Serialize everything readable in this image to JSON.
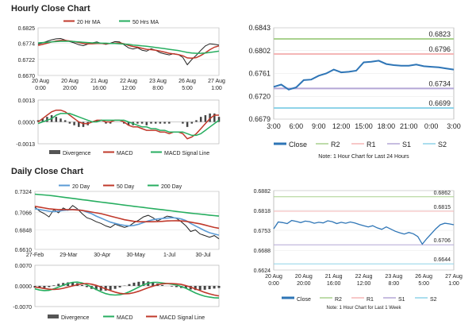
{
  "hourly": {
    "title": "Hourly Close Chart",
    "chart_data": [
      {
        "type": "line",
        "id": "hourly-price",
        "legend": [
          "20 Hr MA",
          "50 Hrs MA"
        ],
        "colors": {
          "close": "#222222",
          "ma20": "#c0392b",
          "ma50": "#27ae60"
        },
        "yticks": [
          "0.6825",
          "0.6774",
          "0.6722",
          "0.6670"
        ],
        "ylim": [
          0.667,
          0.6825
        ],
        "xticks": [
          "20 Aug\n0:00",
          "20 Aug\n20:00",
          "21 Aug\n16:00",
          "22 Aug\n12:00",
          "23 Aug\n8:00",
          "26 Aug\n5:00",
          "27 Aug\n1:00"
        ],
        "series": [
          {
            "name": "Close",
            "values": [
              0.6772,
              0.6776,
              0.6781,
              0.6786,
              0.6789,
              0.679,
              0.6785,
              0.678,
              0.6776,
              0.677,
              0.6767,
              0.6772,
              0.6776,
              0.6779,
              0.6774,
              0.6771,
              0.6775,
              0.678,
              0.6779,
              0.677,
              0.676,
              0.6756,
              0.676,
              0.6752,
              0.6749,
              0.6757,
              0.6752,
              0.6744,
              0.674,
              0.6737,
              0.6741,
              0.6738,
              0.6729,
              0.6705,
              0.6722,
              0.6736,
              0.6752,
              0.6766,
              0.6773,
              0.6771,
              0.6769
            ]
          },
          {
            "name": "20 Hr MA",
            "values": [
              0.6768,
              0.6771,
              0.6775,
              0.6779,
              0.6782,
              0.6784,
              0.6784,
              0.6782,
              0.678,
              0.6777,
              0.6774,
              0.6773,
              0.6773,
              0.6774,
              0.6774,
              0.6773,
              0.6774,
              0.6775,
              0.6776,
              0.6773,
              0.6768,
              0.6764,
              0.6762,
              0.6758,
              0.6755,
              0.6754,
              0.6752,
              0.6749,
              0.6746,
              0.6742,
              0.674,
              0.6738,
              0.6734,
              0.6727,
              0.6726,
              0.6728,
              0.6735,
              0.6744,
              0.6754,
              0.6762,
              0.6766
            ]
          },
          {
            "name": "50 Hrs MA",
            "values": [
              0.6776,
              0.6777,
              0.6778,
              0.6779,
              0.678,
              0.6781,
              0.6781,
              0.6781,
              0.678,
              0.6779,
              0.6778,
              0.6777,
              0.6776,
              0.6776,
              0.6775,
              0.6775,
              0.6774,
              0.6774,
              0.6773,
              0.6772,
              0.6771,
              0.6769,
              0.6768,
              0.6766,
              0.6765,
              0.6763,
              0.6761,
              0.6759,
              0.6757,
              0.6755,
              0.6753,
              0.6751,
              0.6748,
              0.6745,
              0.6743,
              0.6742,
              0.6742,
              0.6743,
              0.6745,
              0.6747,
              0.6749
            ]
          }
        ]
      },
      {
        "type": "line",
        "id": "hourly-macd",
        "legend": [
          "Divergence",
          "MACD",
          "MACD Signal Line"
        ],
        "yticks": [
          "0.0013",
          "0.0000",
          "-0.0013"
        ],
        "ylim": [
          -0.0013,
          0.0013
        ],
        "series": [
          {
            "name": "MACD",
            "values": [
              0.0,
              0.0002,
              0.0004,
              0.0006,
              0.0007,
              0.0007,
              0.0006,
              0.0004,
              0.0002,
              0.0,
              -0.0001,
              -0.0001,
              0.0,
              0.0001,
              0.0001,
              0.0,
              0.0,
              0.0001,
              0.0001,
              0.0,
              -0.0002,
              -0.0003,
              -0.0003,
              -0.0004,
              -0.0005,
              -0.0005,
              -0.0005,
              -0.0006,
              -0.0006,
              -0.0007,
              -0.0006,
              -0.0006,
              -0.0007,
              -0.001,
              -0.0009,
              -0.0007,
              -0.0004,
              -0.0001,
              0.0002,
              0.0004,
              0.0004
            ]
          },
          {
            "name": "MACD Signal Line",
            "values": [
              -0.0001,
              0.0,
              0.0001,
              0.0002,
              0.0004,
              0.0005,
              0.0005,
              0.0005,
              0.0004,
              0.0003,
              0.0002,
              0.0001,
              0.0,
              0.0,
              0.0001,
              0.0001,
              0.0001,
              0.0001,
              0.0001,
              0.0001,
              0.0,
              -0.0001,
              -0.0002,
              -0.0003,
              -0.0003,
              -0.0004,
              -0.0004,
              -0.0005,
              -0.0005,
              -0.0006,
              -0.0006,
              -0.0006,
              -0.0006,
              -0.0007,
              -0.0008,
              -0.0008,
              -0.0007,
              -0.0005,
              -0.0003,
              -0.0001,
              0.0001
            ]
          }
        ]
      },
      {
        "type": "line",
        "id": "hourly-24h",
        "title": "",
        "note": "Note: 1 Hour Chart for Last 24 Hours",
        "yticks": [
          "0.6843",
          "0.6802",
          "0.6761",
          "0.6720",
          "0.6679"
        ],
        "ylim": [
          0.6679,
          0.6843
        ],
        "xticks": [
          "3:00",
          "6:00",
          "9:00",
          "12:00",
          "15:00",
          "18:00",
          "21:00",
          "0:00",
          "3:00"
        ],
        "levels": [
          {
            "name": "R2",
            "value": 0.6823,
            "label": "0.6823",
            "color": "#a9d18e"
          },
          {
            "name": "R1",
            "value": 0.6796,
            "label": "0.6796",
            "color": "#f4b6b6"
          },
          {
            "name": "S1",
            "value": 0.6734,
            "label": "0.6734",
            "color": "#b4a7d6"
          },
          {
            "name": "S2",
            "value": 0.6699,
            "label": "0.6699",
            "color": "#8fd3e8"
          }
        ],
        "series": [
          {
            "name": "Close",
            "values": [
              0.6737,
              0.6741,
              0.6732,
              0.6736,
              0.6749,
              0.675,
              0.6757,
              0.6761,
              0.6768,
              0.6763,
              0.6764,
              0.6766,
              0.6781,
              0.6782,
              0.6784,
              0.6778,
              0.6776,
              0.6775,
              0.6775,
              0.6777,
              0.6774,
              0.6773,
              0.6772,
              0.677,
              0.6768
            ]
          }
        ],
        "legend": [
          "Close",
          "R2",
          "R1",
          "S1",
          "S2"
        ]
      }
    ]
  },
  "daily": {
    "title": "Daily Close Chart",
    "chart_data": [
      {
        "type": "line",
        "id": "daily-price",
        "legend": [
          "20 Day",
          "50 Day",
          "200 Day"
        ],
        "colors": {
          "close": "#222222",
          "ma20": "#5b9bd5",
          "ma50": "#c0392b",
          "ma200": "#27ae60"
        },
        "yticks": [
          "0.7324",
          "0.7066",
          "0.6848",
          "0.6610"
        ],
        "ylim": [
          0.661,
          0.7324
        ],
        "xticks": [
          "27-Feb",
          "29-Mar",
          "30-Apr",
          "30-May",
          "1-Jul",
          "30-Jul"
        ],
        "series": [
          {
            "name": "Close",
            "values": [
              0.713,
              0.708,
              0.705,
              0.701,
              0.71,
              0.706,
              0.712,
              0.709,
              0.715,
              0.711,
              0.705,
              0.7,
              0.698,
              0.695,
              0.693,
              0.69,
              0.688,
              0.692,
              0.69,
              0.688,
              0.69,
              0.694,
              0.697,
              0.701,
              0.703,
              0.7,
              0.696,
              0.699,
              0.702,
              0.701,
              0.699,
              0.695,
              0.69,
              0.683,
              0.685,
              0.68,
              0.678,
              0.676,
              0.678,
              0.674
            ]
          },
          {
            "name": "20 Day",
            "values": [
              0.711,
              0.71,
              0.709,
              0.708,
              0.7075,
              0.708,
              0.709,
              0.7095,
              0.71,
              0.71,
              0.709,
              0.707,
              0.705,
              0.702,
              0.6995,
              0.697,
              0.6945,
              0.693,
              0.6915,
              0.6905,
              0.69,
              0.6905,
              0.692,
              0.694,
              0.696,
              0.6975,
              0.6985,
              0.699,
              0.6995,
              0.7,
              0.6995,
              0.6985,
              0.6965,
              0.693,
              0.69,
              0.687,
              0.684,
              0.6815,
              0.68,
              0.6785
            ]
          },
          {
            "name": "50 Day",
            "values": [
              0.714,
              0.713,
              0.712,
              0.711,
              0.7105,
              0.71,
              0.71,
              0.71,
              0.71,
              0.7095,
              0.709,
              0.708,
              0.707,
              0.706,
              0.705,
              0.7035,
              0.702,
              0.7005,
              0.699,
              0.6975,
              0.6965,
              0.6955,
              0.695,
              0.695,
              0.695,
              0.695,
              0.6952,
              0.6955,
              0.696,
              0.6962,
              0.6963,
              0.696,
              0.6955,
              0.6945,
              0.6935,
              0.6925,
              0.691,
              0.6895,
              0.688,
              0.687
            ]
          },
          {
            "name": "200 Day",
            "values": [
              0.729,
              0.7285,
              0.728,
              0.7275,
              0.7268,
              0.726,
              0.7253,
              0.7245,
              0.7238,
              0.723,
              0.7222,
              0.7215,
              0.7208,
              0.72,
              0.7192,
              0.7185,
              0.7178,
              0.717,
              0.7163,
              0.7155,
              0.7148,
              0.714,
              0.7133,
              0.7126,
              0.7119,
              0.7112,
              0.7105,
              0.7098,
              0.7091,
              0.7084,
              0.7077,
              0.707,
              0.7063,
              0.7056,
              0.705,
              0.7044,
              0.7038,
              0.7032,
              0.7026,
              0.702
            ]
          }
        ]
      },
      {
        "type": "line",
        "id": "daily-macd",
        "legend": [
          "Divergence",
          "MACD",
          "MACD Signal Line"
        ],
        "yticks": [
          "0.0070",
          "0.0000",
          "-0.0070"
        ],
        "ylim": [
          -0.007,
          0.007
        ],
        "series": [
          {
            "name": "MACD",
            "values": [
              -0.001,
              -0.0014,
              -0.0016,
              -0.0015,
              -0.001,
              -0.0004,
              0.0002,
              0.0008,
              0.0012,
              0.0013,
              0.001,
              0.0004,
              -0.0004,
              -0.0012,
              -0.002,
              -0.0026,
              -0.003,
              -0.0031,
              -0.003,
              -0.0026,
              -0.002,
              -0.0012,
              -0.0004,
              0.0004,
              0.0009,
              0.0012,
              0.0012,
              0.001,
              0.0008,
              0.0006,
              0.0003,
              -0.0002,
              -0.0008,
              -0.0016,
              -0.0024,
              -0.003,
              -0.0035,
              -0.0038,
              -0.004,
              -0.0041
            ]
          },
          {
            "name": "MACD Signal Line",
            "values": [
              -0.0004,
              -0.0006,
              -0.0009,
              -0.0011,
              -0.0012,
              -0.0011,
              -0.0008,
              -0.0004,
              0.0,
              0.0004,
              0.0007,
              0.0008,
              0.0006,
              0.0002,
              -0.0004,
              -0.001,
              -0.0016,
              -0.0021,
              -0.0025,
              -0.0027,
              -0.0026,
              -0.0023,
              -0.0018,
              -0.0012,
              -0.0006,
              -0.0001,
              0.0004,
              0.0007,
              0.0008,
              0.0008,
              0.0007,
              0.0005,
              0.0001,
              -0.0004,
              -0.001,
              -0.0016,
              -0.0022,
              -0.0027,
              -0.0031,
              -0.0034
            ]
          }
        ]
      },
      {
        "type": "line",
        "id": "daily-week",
        "note": "Note: 1 Hour Chart for Last 1 Week",
        "yticks": [
          "0.6882",
          "0.6818",
          "0.6753",
          "0.6688",
          "0.6624"
        ],
        "ylim": [
          0.6624,
          0.6882
        ],
        "xticks": [
          "20 Aug\n0:00",
          "20 Aug\n20:00",
          "21 Aug\n16:00",
          "22 Aug\n12:00",
          "23 Aug\n8:00",
          "26 Aug\n5:00",
          "27 Aug\n1:00"
        ],
        "levels": [
          {
            "name": "R2",
            "value": 0.6862,
            "label": "0.6862",
            "color": "#a9d18e"
          },
          {
            "name": "R1",
            "value": 0.6815,
            "label": "0.6815",
            "color": "#f4b6b6"
          },
          {
            "name": "S1",
            "value": 0.6706,
            "label": "0.6706",
            "color": "#b4a7d6"
          },
          {
            "name": "S2",
            "value": 0.6644,
            "label": "0.6644",
            "color": "#8fd3e8"
          }
        ],
        "series": [
          {
            "name": "Close",
            "values": [
              0.6758,
              0.678,
              0.6778,
              0.6775,
              0.6785,
              0.6782,
              0.6778,
              0.6783,
              0.6781,
              0.6776,
              0.6779,
              0.6777,
              0.6784,
              0.6781,
              0.6775,
              0.6779,
              0.6776,
              0.678,
              0.6777,
              0.6772,
              0.6768,
              0.6764,
              0.6768,
              0.6761,
              0.6756,
              0.6764,
              0.6757,
              0.675,
              0.6745,
              0.6741,
              0.6746,
              0.6742,
              0.6733,
              0.6708,
              0.6726,
              0.6742,
              0.6758,
              0.6771,
              0.6776,
              0.6774,
              0.6771
            ]
          }
        ],
        "legend": [
          "Close",
          "R2",
          "R1",
          "S1",
          "S2"
        ]
      }
    ]
  }
}
